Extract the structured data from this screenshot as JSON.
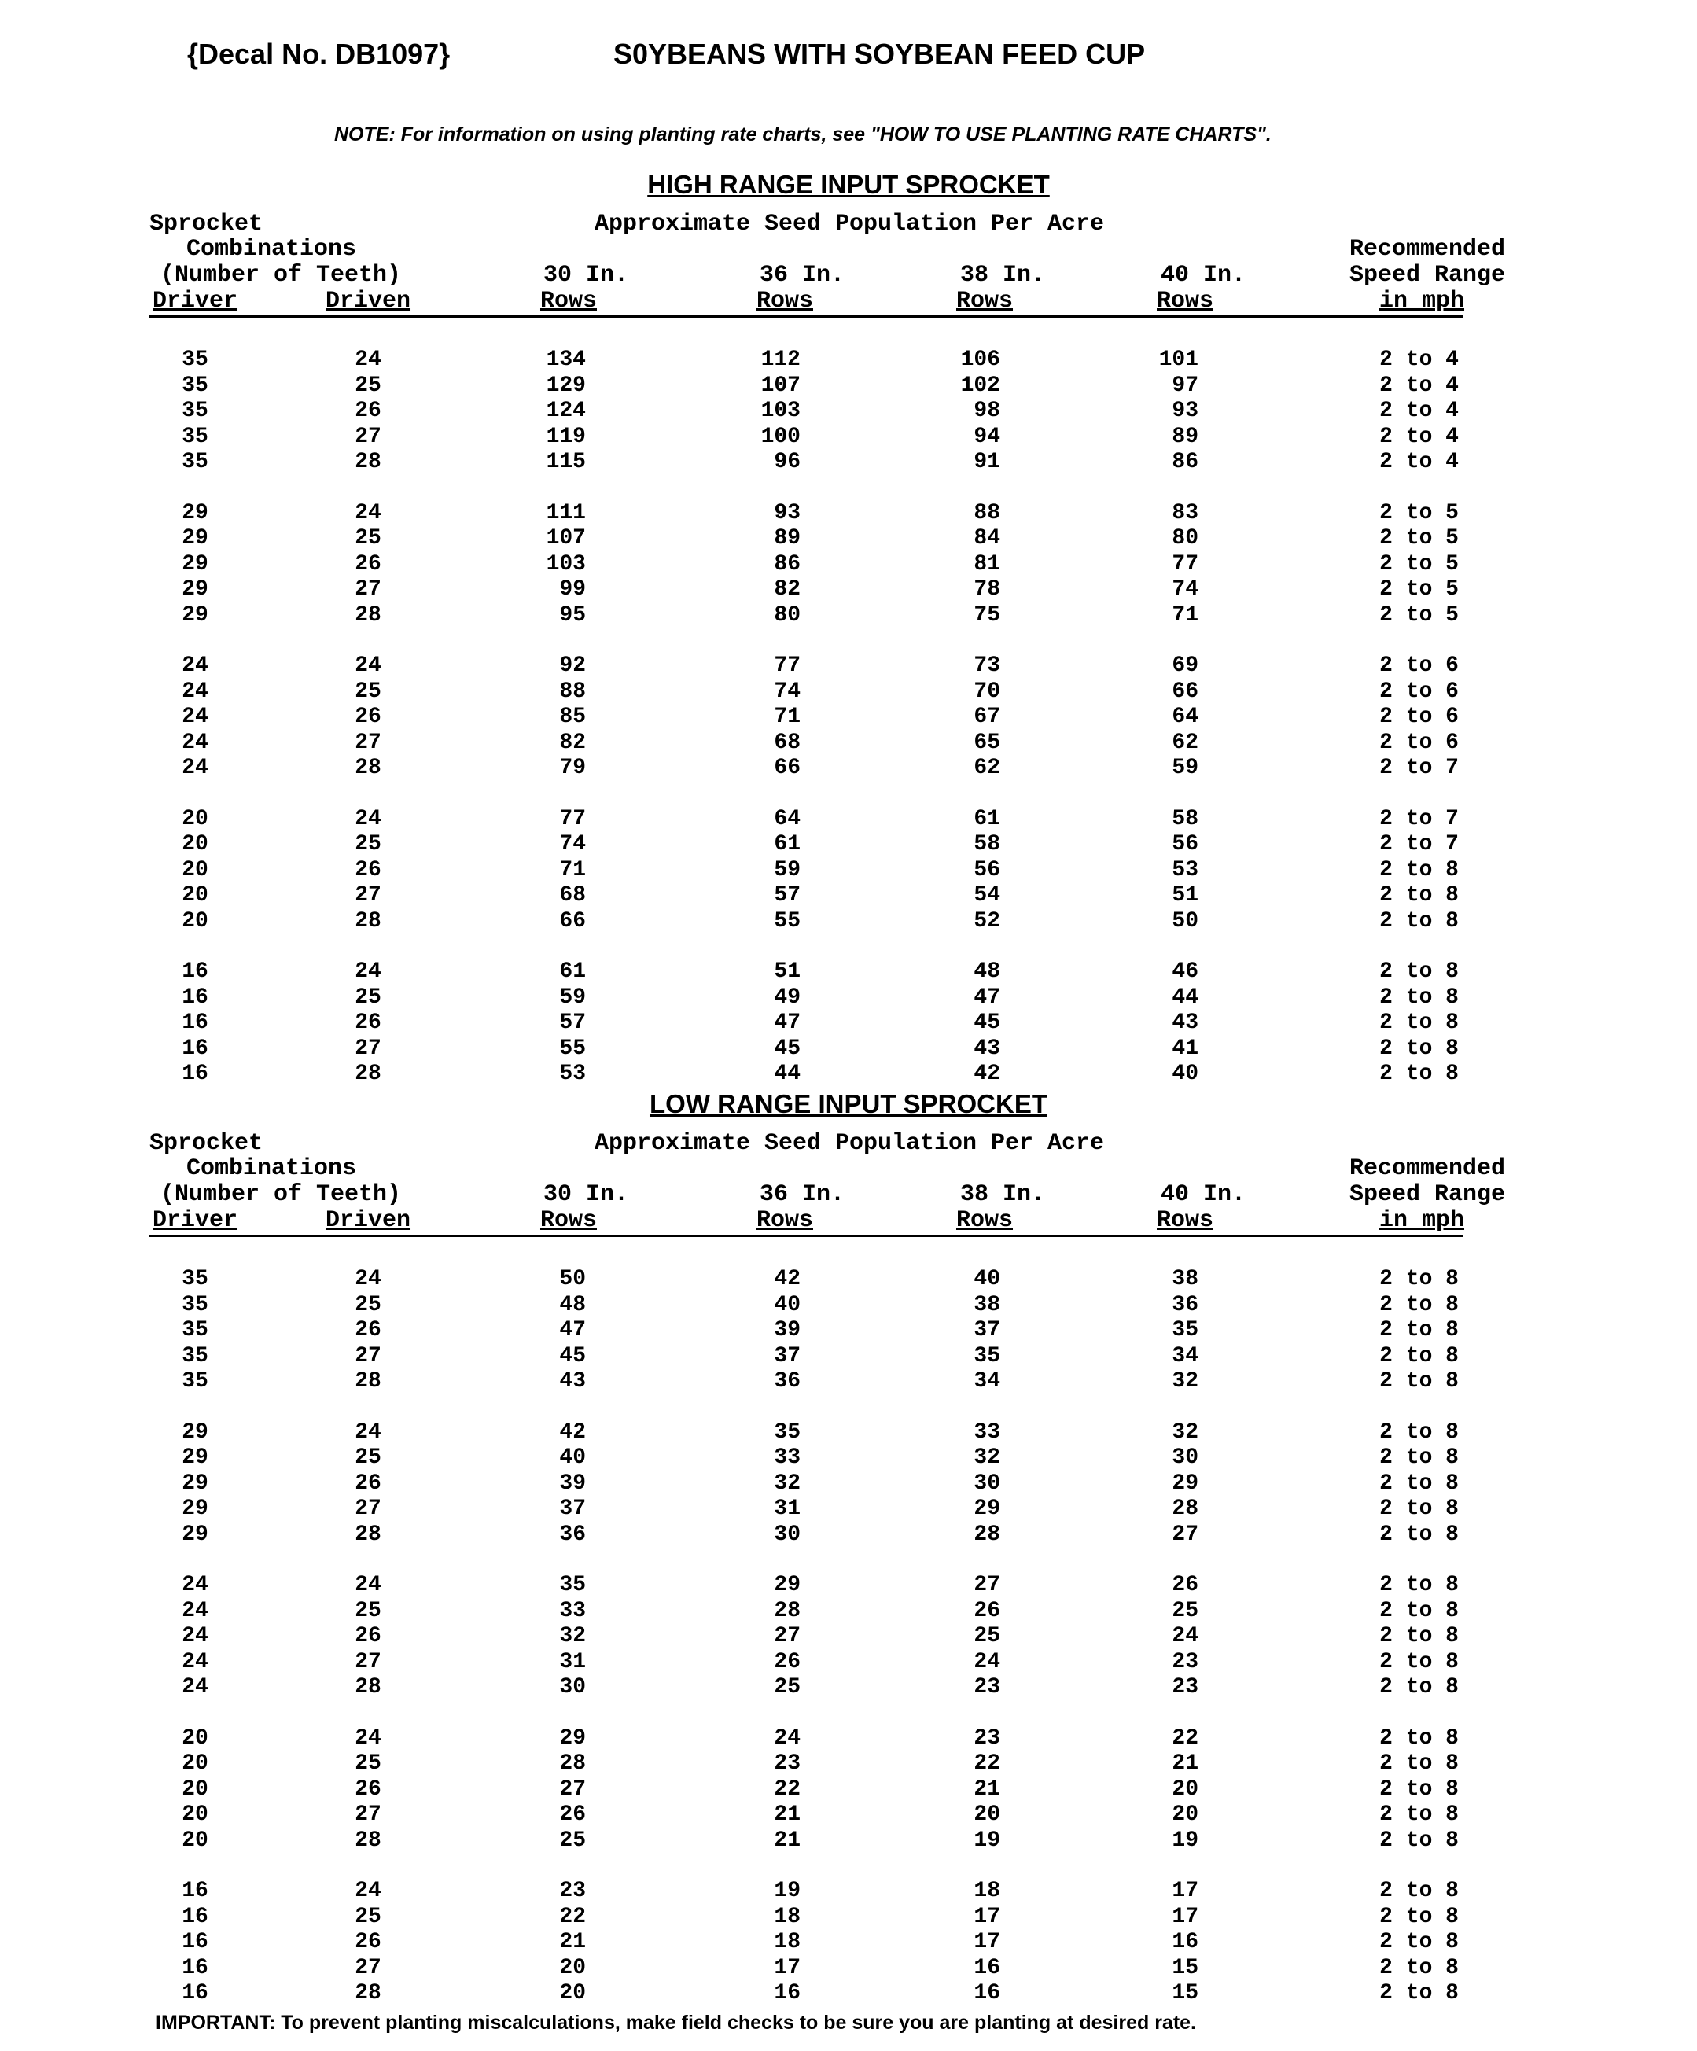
{
  "header": {
    "decal": "{Decal No. DB1097}",
    "title": "S0YBEANS WITH SOYBEAN FEED CUP"
  },
  "note": "NOTE: For information on using planting rate charts, see \"HOW TO USE PLANTING RATE CHARTS\".",
  "column_headers": {
    "sprocket": "Sprocket",
    "combinations": "Combinations",
    "teeth": "(Number of Teeth)",
    "driver": "Driver",
    "driven": "Driven",
    "population": "Approximate Seed Population Per Acre",
    "r30": "30 In.",
    "r36": "36 In.",
    "r38": "38 In.",
    "r40": "40 In.",
    "rows": "Rows",
    "recommended": "Recommended",
    "speed_range": "Speed Range",
    "in_mph": "in mph"
  },
  "tables": [
    {
      "title": "HIGH RANGE INPUT SPROCKET",
      "groups": [
        [
          [
            "35",
            "24",
            "134",
            "112",
            "106",
            "101",
            "2 to 4"
          ],
          [
            "35",
            "25",
            "129",
            "107",
            "102",
            "97",
            "2 to 4"
          ],
          [
            "35",
            "26",
            "124",
            "103",
            "98",
            "93",
            "2 to 4"
          ],
          [
            "35",
            "27",
            "119",
            "100",
            "94",
            "89",
            "2 to 4"
          ],
          [
            "35",
            "28",
            "115",
            "96",
            "91",
            "86",
            "2 to 4"
          ]
        ],
        [
          [
            "29",
            "24",
            "111",
            "93",
            "88",
            "83",
            "2 to 5"
          ],
          [
            "29",
            "25",
            "107",
            "89",
            "84",
            "80",
            "2 to 5"
          ],
          [
            "29",
            "26",
            "103",
            "86",
            "81",
            "77",
            "2 to 5"
          ],
          [
            "29",
            "27",
            "99",
            "82",
            "78",
            "74",
            "2 to 5"
          ],
          [
            "29",
            "28",
            "95",
            "80",
            "75",
            "71",
            "2 to 5"
          ]
        ],
        [
          [
            "24",
            "24",
            "92",
            "77",
            "73",
            "69",
            "2 to 6"
          ],
          [
            "24",
            "25",
            "88",
            "74",
            "70",
            "66",
            "2 to 6"
          ],
          [
            "24",
            "26",
            "85",
            "71",
            "67",
            "64",
            "2 to 6"
          ],
          [
            "24",
            "27",
            "82",
            "68",
            "65",
            "62",
            "2 to 6"
          ],
          [
            "24",
            "28",
            "79",
            "66",
            "62",
            "59",
            "2 to 7"
          ]
        ],
        [
          [
            "20",
            "24",
            "77",
            "64",
            "61",
            "58",
            "2 to 7"
          ],
          [
            "20",
            "25",
            "74",
            "61",
            "58",
            "56",
            "2 to 7"
          ],
          [
            "20",
            "26",
            "71",
            "59",
            "56",
            "53",
            "2 to 8"
          ],
          [
            "20",
            "27",
            "68",
            "57",
            "54",
            "51",
            "2 to 8"
          ],
          [
            "20",
            "28",
            "66",
            "55",
            "52",
            "50",
            "2 to 8"
          ]
        ],
        [
          [
            "16",
            "24",
            "61",
            "51",
            "48",
            "46",
            "2 to 8"
          ],
          [
            "16",
            "25",
            "59",
            "49",
            "47",
            "44",
            "2 to 8"
          ],
          [
            "16",
            "26",
            "57",
            "47",
            "45",
            "43",
            "2 to 8"
          ],
          [
            "16",
            "27",
            "55",
            "45",
            "43",
            "41",
            "2 to 8"
          ],
          [
            "16",
            "28",
            "53",
            "44",
            "42",
            "40",
            "2 to 8"
          ]
        ]
      ]
    },
    {
      "title": "LOW RANGE INPUT SPROCKET",
      "groups": [
        [
          [
            "35",
            "24",
            "50",
            "42",
            "40",
            "38",
            "2 to 8"
          ],
          [
            "35",
            "25",
            "48",
            "40",
            "38",
            "36",
            "2 to 8"
          ],
          [
            "35",
            "26",
            "47",
            "39",
            "37",
            "35",
            "2 to 8"
          ],
          [
            "35",
            "27",
            "45",
            "37",
            "35",
            "34",
            "2 to 8"
          ],
          [
            "35",
            "28",
            "43",
            "36",
            "34",
            "32",
            "2 to 8"
          ]
        ],
        [
          [
            "29",
            "24",
            "42",
            "35",
            "33",
            "32",
            "2 to 8"
          ],
          [
            "29",
            "25",
            "40",
            "33",
            "32",
            "30",
            "2 to 8"
          ],
          [
            "29",
            "26",
            "39",
            "32",
            "30",
            "29",
            "2 to 8"
          ],
          [
            "29",
            "27",
            "37",
            "31",
            "29",
            "28",
            "2 to 8"
          ],
          [
            "29",
            "28",
            "36",
            "30",
            "28",
            "27",
            "2 to 8"
          ]
        ],
        [
          [
            "24",
            "24",
            "35",
            "29",
            "27",
            "26",
            "2 to 8"
          ],
          [
            "24",
            "25",
            "33",
            "28",
            "26",
            "25",
            "2 to 8"
          ],
          [
            "24",
            "26",
            "32",
            "27",
            "25",
            "24",
            "2 to 8"
          ],
          [
            "24",
            "27",
            "31",
            "26",
            "24",
            "23",
            "2 to 8"
          ],
          [
            "24",
            "28",
            "30",
            "25",
            "23",
            "23",
            "2 to 8"
          ]
        ],
        [
          [
            "20",
            "24",
            "29",
            "24",
            "23",
            "22",
            "2 to 8"
          ],
          [
            "20",
            "25",
            "28",
            "23",
            "22",
            "21",
            "2 to 8"
          ],
          [
            "20",
            "26",
            "27",
            "22",
            "21",
            "20",
            "2 to 8"
          ],
          [
            "20",
            "27",
            "26",
            "21",
            "20",
            "20",
            "2 to 8"
          ],
          [
            "20",
            "28",
            "25",
            "21",
            "19",
            "19",
            "2 to 8"
          ]
        ],
        [
          [
            "16",
            "24",
            "23",
            "19",
            "18",
            "17",
            "2 to 8"
          ],
          [
            "16",
            "25",
            "22",
            "18",
            "17",
            "17",
            "2 to 8"
          ],
          [
            "16",
            "26",
            "21",
            "18",
            "17",
            "16",
            "2 to 8"
          ],
          [
            "16",
            "27",
            "20",
            "17",
            "16",
            "15",
            "2 to 8"
          ],
          [
            "16",
            "28",
            "20",
            "16",
            "16",
            "15",
            "2 to 8"
          ]
        ]
      ]
    }
  ],
  "important": "IMPORTANT: To prevent planting miscalculations, make field checks to be sure you are planting at desired rate."
}
